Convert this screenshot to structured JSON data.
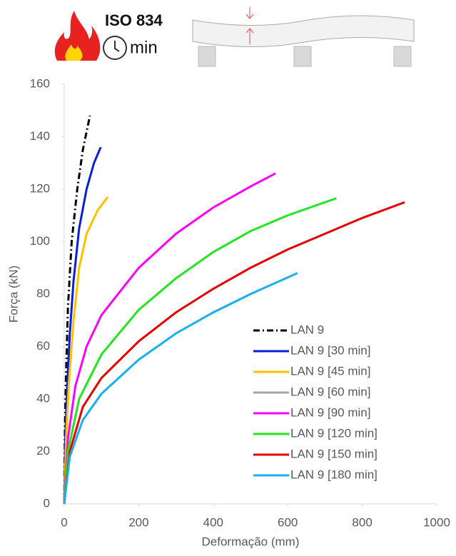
{
  "header": {
    "badge": "ISO 834",
    "unit": "min"
  },
  "chart_data": {
    "type": "line",
    "x_label": "Deformação (mm)",
    "y_label": "Força (kN)",
    "xlim": [
      0,
      1000
    ],
    "xticks": [
      0,
      200,
      400,
      600,
      800,
      1000
    ],
    "ylim": [
      0,
      160
    ],
    "yticks": [
      0,
      20,
      40,
      60,
      80,
      100,
      120,
      140,
      160
    ],
    "grid": false,
    "legend": "lower-right",
    "series": [
      {
        "name": "LAN 9",
        "color": "#000000",
        "dash": "dash-dot",
        "x": [
          0,
          2,
          5,
          10,
          20,
          35,
          50,
          69
        ],
        "values": [
          0,
          30,
          50,
          75,
          100,
          120,
          135,
          148
        ]
      },
      {
        "name": "LAN 9 [30 min]",
        "color": "#0a1fd6",
        "x": [
          0,
          3,
          8,
          15,
          25,
          40,
          60,
          80,
          98
        ],
        "values": [
          0,
          25,
          45,
          65,
          85,
          105,
          120,
          130,
          136
        ]
      },
      {
        "name": "LAN 9 [45 min]",
        "color": "#ffc000",
        "x": [
          0,
          5,
          12,
          25,
          40,
          60,
          90,
          117
        ],
        "values": [
          0,
          25,
          45,
          70,
          90,
          103,
          112,
          117
        ]
      },
      {
        "name": "LAN 9 [60 min]",
        "color": "#a5a5a5",
        "x": [],
        "values": []
      },
      {
        "name": "LAN 9 [90 min]",
        "color": "#ff00ff",
        "x": [
          0,
          10,
          30,
          60,
          100,
          200,
          300,
          400,
          500,
          567
        ],
        "values": [
          0,
          25,
          45,
          60,
          72,
          90,
          103,
          113,
          121,
          126
        ]
      },
      {
        "name": "LAN 9 [120 min]",
        "color": "#22e622",
        "x": [
          0,
          10,
          40,
          100,
          200,
          300,
          400,
          500,
          600,
          730
        ],
        "values": [
          0,
          20,
          40,
          57,
          74,
          86,
          96,
          104,
          110,
          116.5
        ]
      },
      {
        "name": "LAN 9 [150 min]",
        "color": "#e60000",
        "x": [
          0,
          15,
          50,
          100,
          200,
          300,
          400,
          500,
          600,
          700,
          800,
          914
        ],
        "values": [
          0,
          20,
          37,
          48,
          62,
          73,
          82,
          90,
          97,
          103,
          109,
          115
        ]
      },
      {
        "name": "LAN 9 [180 min]",
        "color": "#1ab0f0",
        "x": [
          0,
          15,
          50,
          100,
          200,
          300,
          400,
          500,
          626
        ],
        "values": [
          0,
          18,
          32,
          42,
          55,
          65,
          73,
          80,
          88
        ]
      }
    ]
  }
}
